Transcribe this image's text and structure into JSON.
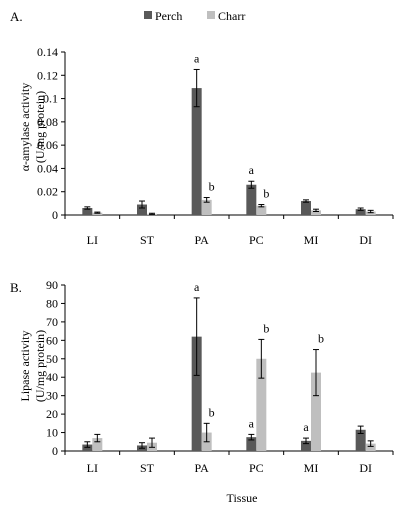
{
  "chart_data": [
    {
      "panel_label": "A.",
      "type": "bar",
      "ylabel_lines": [
        "α-amylase activity",
        "(U/mg protein)"
      ],
      "xlabel": "",
      "ylim": [
        0,
        0.14
      ],
      "yticks": [
        "0",
        "0.02",
        "0.04",
        "0.06",
        "0.08",
        "0.1",
        "0.12",
        "0.14"
      ],
      "legend_position": "top",
      "categories": [
        "LI",
        "ST",
        "PA",
        "PC",
        "MI",
        "DI"
      ],
      "series": [
        {
          "name": "Perch",
          "color": "#595959",
          "values": [
            0.006,
            0.009,
            0.109,
            0.026,
            0.012,
            0.005
          ],
          "errors": [
            0.001,
            0.003,
            0.016,
            0.003,
            0.001,
            0.001
          ],
          "letters": [
            "",
            "",
            "a",
            "a",
            "",
            ""
          ]
        },
        {
          "name": "Charr",
          "color": "#bfbfbf",
          "values": [
            0.002,
            0.001,
            0.013,
            0.008,
            0.004,
            0.003
          ],
          "errors": [
            0.0005,
            0.0005,
            0.002,
            0.001,
            0.001,
            0.001
          ],
          "letters": [
            "",
            "",
            "b",
            "b",
            "",
            ""
          ]
        }
      ]
    },
    {
      "panel_label": "B.",
      "type": "bar",
      "ylabel_lines": [
        "Lipase activity",
        "(U/mg protein)"
      ],
      "xlabel": "Tissue",
      "ylim": [
        0,
        90
      ],
      "yticks": [
        "0",
        "10",
        "20",
        "30",
        "40",
        "50",
        "60",
        "70",
        "80",
        "90"
      ],
      "categories": [
        "LI",
        "ST",
        "PA",
        "PC",
        "MI",
        "DI"
      ],
      "series": [
        {
          "name": "Perch",
          "color": "#595959",
          "values": [
            3.5,
            3,
            62,
            7.5,
            5.5,
            11.5
          ],
          "errors": [
            1.5,
            1.5,
            21,
            1.5,
            1.5,
            2
          ],
          "letters": [
            "",
            "",
            "a",
            "a",
            "a",
            ""
          ]
        },
        {
          "name": "Charr",
          "color": "#bfbfbf",
          "values": [
            7,
            4.5,
            10,
            50,
            42.5,
            4
          ],
          "errors": [
            2,
            2.5,
            5,
            10.5,
            12.5,
            1.5
          ],
          "letters": [
            "",
            "",
            "b",
            "b",
            "b",
            ""
          ]
        }
      ]
    }
  ]
}
